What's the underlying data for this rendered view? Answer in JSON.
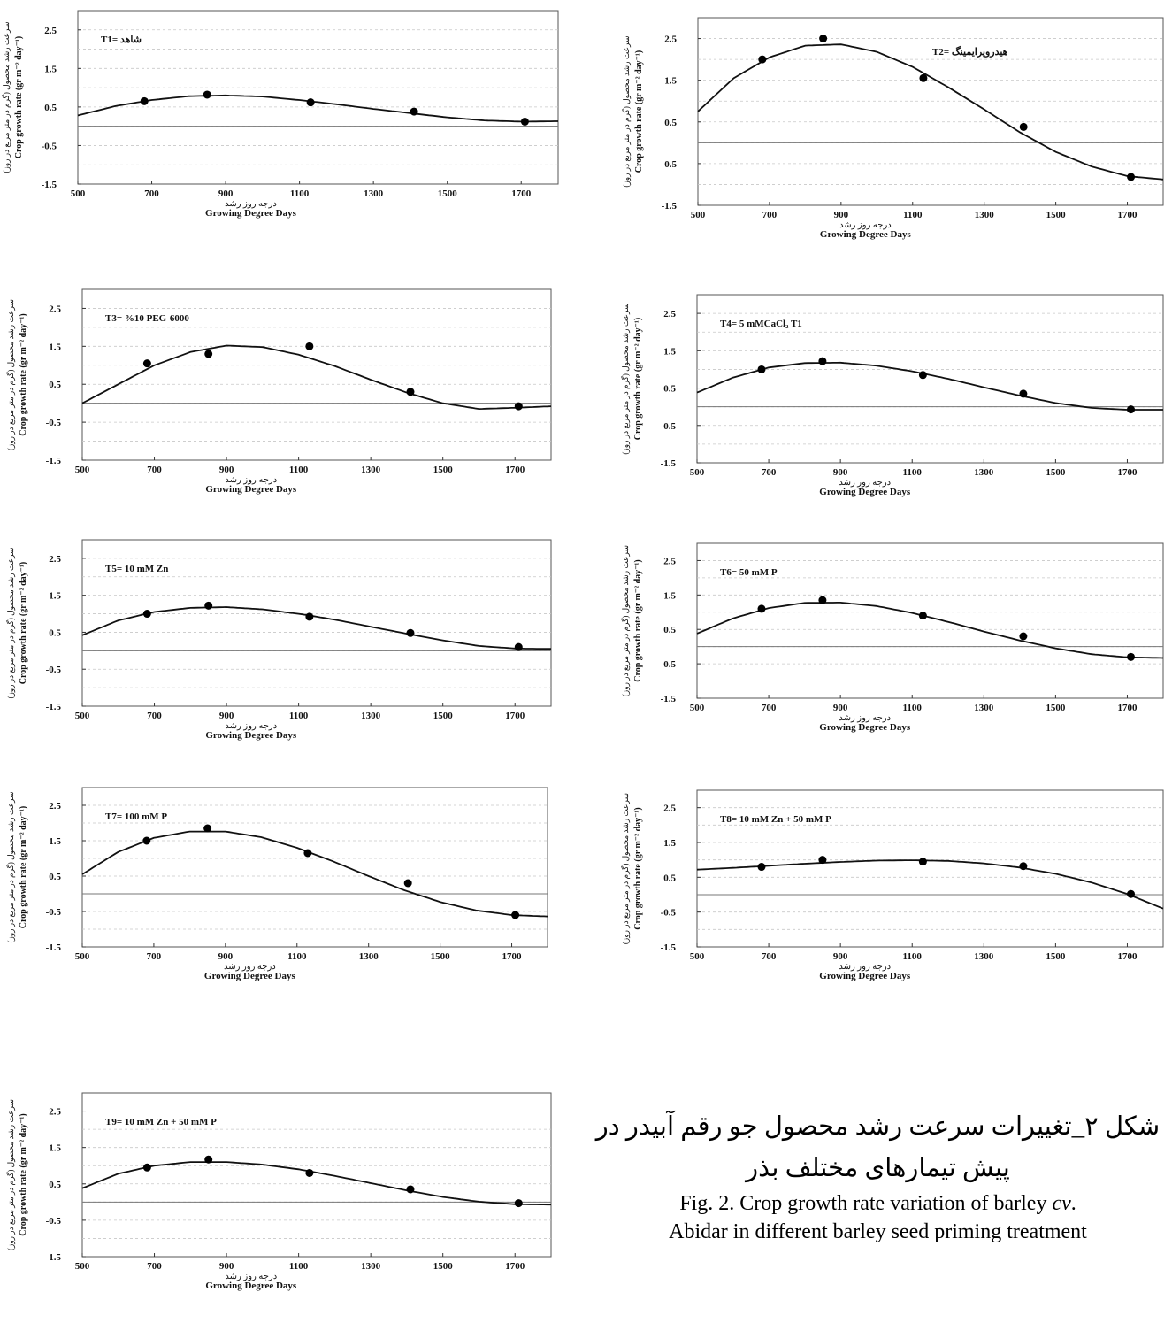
{
  "figure": {
    "caption_fa_line1": "شکل ۲_تغییرات سرعت رشد محصول جو رقم آبیدر در",
    "caption_fa_line2": "پیش تیمارهای مختلف بذر",
    "caption_en_prefix": "Fig. 2. Crop growth rate variation of barley ",
    "caption_en_cv": "cv",
    "caption_en_suffix": ".",
    "caption_en_line2": "Abidar in different barley seed priming treatment"
  },
  "chart_data": [
    {
      "type": "scatter",
      "title": "T1= شاهد",
      "xlabel_fa": "درجه روز رشد",
      "xlabel": "Growing Degree Days",
      "ylabel_fa": "سرعت رشد محصول (گرم در متر مربع در روز)",
      "ylabel": "Crop growth rate (gr m⁻² day⁻¹)",
      "xlim": [
        500,
        1800
      ],
      "ylim": [
        -1.5,
        3.0
      ],
      "xticks": [
        500,
        700,
        900,
        1100,
        1300,
        1500,
        1700
      ],
      "xtick_labels": [
        "500",
        "700",
        "900",
        "1100",
        "1300",
        "1500",
        "1700"
      ],
      "yticks": [
        -1.5,
        -0.5,
        0.5,
        1.5,
        2.5
      ],
      "ytick_labels": [
        "-1.5",
        "-0.5",
        "0.5",
        "1.5",
        "2.5"
      ],
      "grid": "dashed-horizontal",
      "points": {
        "x": [
          680,
          850,
          1130,
          1410,
          1710
        ],
        "y": [
          0.65,
          0.82,
          0.62,
          0.38,
          0.12
        ]
      },
      "fitted_curve": {
        "x": [
          500,
          600,
          700,
          800,
          900,
          1000,
          1100,
          1200,
          1300,
          1400,
          1500,
          1600,
          1700,
          1800
        ],
        "y": [
          0.28,
          0.52,
          0.68,
          0.78,
          0.8,
          0.77,
          0.68,
          0.57,
          0.45,
          0.34,
          0.23,
          0.15,
          0.12,
          0.13
        ]
      }
    },
    {
      "type": "scatter",
      "title": "T2= هیدروپرایمینگ",
      "xlabel_fa": "درجه روز رشد",
      "xlabel": "Growing Degree Days",
      "ylabel_fa": "سرعت رشد محصول (گرم در متر مربع در روز)",
      "ylabel": "Crop growth rate (gr m⁻² day⁻¹)",
      "xlim": [
        500,
        1800
      ],
      "ylim": [
        -1.5,
        3.0
      ],
      "xticks": [
        500,
        700,
        900,
        1100,
        1300,
        1500,
        1700
      ],
      "xtick_labels": [
        "500",
        "700",
        "900",
        "1100",
        "1300",
        "1500",
        "1700"
      ],
      "yticks": [
        -1.5,
        -0.5,
        0.5,
        1.5,
        2.5
      ],
      "ytick_labels": [
        "-1.5",
        "-0.5",
        "0.5",
        "1.5",
        "2.5"
      ],
      "grid": "dashed-horizontal",
      "points": {
        "x": [
          680,
          850,
          1130,
          1410,
          1710
        ],
        "y": [
          2.0,
          2.5,
          1.55,
          0.38,
          -0.82
        ]
      },
      "fitted_curve": {
        "x": [
          500,
          600,
          700,
          800,
          900,
          1000,
          1100,
          1200,
          1300,
          1400,
          1500,
          1600,
          1700,
          1800
        ],
        "y": [
          0.75,
          1.55,
          2.05,
          2.33,
          2.36,
          2.18,
          1.82,
          1.33,
          0.8,
          0.25,
          -0.22,
          -0.57,
          -0.8,
          -0.88
        ]
      }
    },
    {
      "type": "scatter",
      "title": "T3= %10 PEG-6000",
      "xlabel_fa": "درجه روز رشد",
      "xlabel": "Growing Degree Days",
      "ylabel_fa": "سرعت رشد محصول (گرم در متر مربع در روز)",
      "ylabel": "Crop growth rate (gr m⁻² day⁻¹)",
      "xlim": [
        500,
        1800
      ],
      "ylim": [
        -1.5,
        3.0
      ],
      "xticks": [
        500,
        700,
        900,
        1100,
        1300,
        1500,
        1700
      ],
      "xtick_labels": [
        "500",
        "700",
        "900",
        "1100",
        "1300",
        "1500",
        "1700"
      ],
      "yticks": [
        -1.5,
        -0.5,
        0.5,
        1.5,
        2.5
      ],
      "ytick_labels": [
        "-1.5",
        "-0.5",
        "0.5",
        "1.5",
        "2.5"
      ],
      "grid": "dashed-horizontal",
      "points": {
        "x": [
          680,
          850,
          1130,
          1410,
          1710
        ],
        "y": [
          1.05,
          1.3,
          1.5,
          0.3,
          -0.08
        ]
      },
      "fitted_curve": {
        "x": [
          500,
          600,
          700,
          800,
          900,
          1000,
          1100,
          1200,
          1300,
          1400,
          1500,
          1600,
          1700,
          1800
        ],
        "y": [
          0.0,
          0.5,
          1.0,
          1.35,
          1.52,
          1.48,
          1.28,
          0.98,
          0.62,
          0.28,
          -0.0,
          -0.15,
          -0.12,
          -0.08
        ]
      }
    },
    {
      "type": "scatter",
      "title": "T4= 5 mMCaCl₂ T1",
      "xlabel_fa": "درجه روز رشد",
      "xlabel": "Growing Degree Days",
      "ylabel_fa": "سرعت رشد محصول (گرم در متر مربع در روز)",
      "ylabel": "Crop growth rate (gr m⁻² day⁻¹)",
      "xlim": [
        500,
        1800
      ],
      "ylim": [
        -1.5,
        3.0
      ],
      "xticks": [
        500,
        700,
        900,
        1100,
        1300,
        1500,
        1700
      ],
      "xtick_labels": [
        "500",
        "700",
        "900",
        "1100",
        "1300",
        "1500",
        "1700"
      ],
      "yticks": [
        -1.5,
        -0.5,
        0.5,
        1.5,
        2.5
      ],
      "ytick_labels": [
        "-1.5",
        "-0.5",
        "0.5",
        "1.5",
        "2.5"
      ],
      "grid": "dashed-horizontal",
      "points": {
        "x": [
          680,
          850,
          1130,
          1410,
          1710
        ],
        "y": [
          1.0,
          1.22,
          0.85,
          0.35,
          -0.07
        ]
      },
      "fitted_curve": {
        "x": [
          500,
          600,
          700,
          800,
          900,
          1000,
          1100,
          1200,
          1300,
          1400,
          1500,
          1600,
          1700,
          1800
        ],
        "y": [
          0.38,
          0.78,
          1.05,
          1.17,
          1.18,
          1.1,
          0.95,
          0.75,
          0.52,
          0.3,
          0.1,
          -0.03,
          -0.08,
          -0.08
        ]
      }
    },
    {
      "type": "scatter",
      "title": "T5= 10 mM Zn",
      "xlabel_fa": "درجه روز رشد",
      "xlabel": "Growing Degree Days",
      "ylabel_fa": "سرعت رشد محصول (گرم در متر مربع در روز)",
      "ylabel": "Crop growth rate (gr m⁻² day⁻¹)",
      "xlim": [
        500,
        1800
      ],
      "ylim": [
        -1.5,
        3.0
      ],
      "xticks": [
        500,
        700,
        900,
        1100,
        1300,
        1500,
        1700
      ],
      "xtick_labels": [
        "500",
        "700",
        "900",
        "1100",
        "1300",
        "1500",
        "1700"
      ],
      "yticks": [
        -1.5,
        -0.5,
        0.5,
        1.5,
        2.5
      ],
      "ytick_labels": [
        "-1.5",
        "-0.5",
        "0.5",
        "1.5",
        "2.5"
      ],
      "grid": "dashed-horizontal",
      "points": {
        "x": [
          680,
          850,
          1130,
          1410,
          1710
        ],
        "y": [
          1.0,
          1.22,
          0.92,
          0.48,
          0.1
        ]
      },
      "fitted_curve": {
        "x": [
          500,
          600,
          700,
          800,
          900,
          1000,
          1100,
          1200,
          1300,
          1400,
          1500,
          1600,
          1700,
          1800
        ],
        "y": [
          0.42,
          0.82,
          1.05,
          1.16,
          1.18,
          1.12,
          1.0,
          0.84,
          0.65,
          0.46,
          0.28,
          0.13,
          0.06,
          0.05
        ]
      }
    },
    {
      "type": "scatter",
      "title": "T6= 50 mM P",
      "xlabel_fa": "درجه روز رشد",
      "xlabel": "Growing Degree Days",
      "ylabel_fa": "سرعت رشد محصول (گرم در متر مربع در روز)",
      "ylabel": "Crop growth rate (gr m⁻² day⁻¹)",
      "xlim": [
        500,
        1800
      ],
      "ylim": [
        -1.5,
        3.0
      ],
      "xticks": [
        500,
        700,
        900,
        1100,
        1300,
        1500,
        1700
      ],
      "xtick_labels": [
        "500",
        "700",
        "900",
        "1100",
        "1300",
        "1500",
        "1700"
      ],
      "yticks": [
        -1.5,
        -0.5,
        0.5,
        1.5,
        2.5
      ],
      "ytick_labels": [
        "-1.5",
        "-0.5",
        "0.5",
        "1.5",
        "2.5"
      ],
      "grid": "dashed-horizontal",
      "points": {
        "x": [
          680,
          850,
          1130,
          1410,
          1710
        ],
        "y": [
          1.1,
          1.35,
          0.9,
          0.3,
          -0.3
        ]
      },
      "fitted_curve": {
        "x": [
          500,
          600,
          700,
          800,
          900,
          1000,
          1100,
          1200,
          1300,
          1400,
          1500,
          1600,
          1700,
          1800
        ],
        "y": [
          0.38,
          0.82,
          1.12,
          1.27,
          1.28,
          1.18,
          0.98,
          0.72,
          0.44,
          0.18,
          -0.05,
          -0.22,
          -0.31,
          -0.33
        ]
      }
    },
    {
      "type": "scatter",
      "title": "T7= 100 mM P",
      "xlabel_fa": "درجه روز رشد",
      "xlabel": "Growing Degree Days",
      "ylabel_fa": "سرعت رشد محصول (گرم در متر مربع در روز)",
      "ylabel": "Crop growth rate (gr m⁻² day⁻¹)",
      "xlim": [
        500,
        1800
      ],
      "ylim": [
        -1.5,
        3.0
      ],
      "xticks": [
        500,
        700,
        900,
        1100,
        1300,
        1500,
        1700
      ],
      "xtick_labels": [
        "500",
        "700",
        "900",
        "1100",
        "1300",
        "1500",
        "1700"
      ],
      "yticks": [
        -1.5,
        -0.5,
        0.5,
        1.5,
        2.5
      ],
      "ytick_labels": [
        "-1.5",
        "-0.5",
        "0.5",
        "1.5",
        "2.5"
      ],
      "grid": "dashed-horizontal",
      "points": {
        "x": [
          680,
          850,
          1130,
          1410,
          1710
        ],
        "y": [
          1.5,
          1.85,
          1.15,
          0.3,
          -0.6
        ]
      },
      "fitted_curve": {
        "x": [
          500,
          600,
          700,
          800,
          900,
          1000,
          1100,
          1200,
          1300,
          1400,
          1500,
          1600,
          1700,
          1800
        ],
        "y": [
          0.55,
          1.18,
          1.58,
          1.76,
          1.76,
          1.6,
          1.3,
          0.92,
          0.5,
          0.1,
          -0.23,
          -0.47,
          -0.6,
          -0.64
        ]
      }
    },
    {
      "type": "scatter",
      "title": "T8= 10 mM Zn + 50 mM P",
      "xlabel_fa": "درجه روز رشد",
      "xlabel": "Growing Degree Days",
      "ylabel_fa": "سرعت رشد محصول (گرم در متر مربع در روز)",
      "ylabel": "Crop growth rate (gr m⁻² day⁻¹)",
      "xlim": [
        500,
        1800
      ],
      "ylim": [
        -1.5,
        3.0
      ],
      "xticks": [
        500,
        700,
        900,
        1100,
        1300,
        1500,
        1700
      ],
      "xtick_labels": [
        "500",
        "700",
        "900",
        "1100",
        "1300",
        "1500",
        "1700"
      ],
      "yticks": [
        -1.5,
        -0.5,
        0.5,
        1.5,
        2.5
      ],
      "ytick_labels": [
        "-1.5",
        "-0.5",
        "0.5",
        "1.5",
        "2.5"
      ],
      "grid": "dashed-horizontal",
      "points": {
        "x": [
          680,
          850,
          1130,
          1410,
          1710
        ],
        "y": [
          0.8,
          1.0,
          0.95,
          0.82,
          0.02
        ]
      },
      "fitted_curve": {
        "x": [
          500,
          600,
          700,
          800,
          900,
          1000,
          1100,
          1200,
          1300,
          1400,
          1500,
          1600,
          1700,
          1800
        ],
        "y": [
          0.72,
          0.77,
          0.83,
          0.89,
          0.94,
          0.98,
          0.99,
          0.97,
          0.9,
          0.78,
          0.6,
          0.35,
          0.02,
          -0.4
        ]
      }
    },
    {
      "type": "scatter",
      "title": "T9= 10 mM Zn + 50 mM P",
      "xlabel_fa": "درجه روز رشد",
      "xlabel": "Growing Degree Days",
      "ylabel_fa": "سرعت رشد محصول (گرم در متر مربع در روز)",
      "ylabel": "Crop growth rate (gr m⁻² day⁻¹)",
      "xlim": [
        500,
        1800
      ],
      "ylim": [
        -1.5,
        3.0
      ],
      "xticks": [
        500,
        700,
        900,
        1100,
        1300,
        1500,
        1700
      ],
      "xtick_labels": [
        "500",
        "700",
        "900",
        "1100",
        "1300",
        "1500",
        "1700"
      ],
      "yticks": [
        -1.5,
        -0.5,
        0.5,
        1.5,
        2.5
      ],
      "ytick_labels": [
        "-1.5",
        "-0.5",
        "0.5",
        "1.5",
        "2.5"
      ],
      "grid": "dashed-horizontal",
      "points": {
        "x": [
          680,
          850,
          1130,
          1410,
          1710
        ],
        "y": [
          0.95,
          1.17,
          0.8,
          0.35,
          -0.03
        ]
      },
      "fitted_curve": {
        "x": [
          500,
          600,
          700,
          800,
          900,
          1000,
          1100,
          1200,
          1300,
          1400,
          1500,
          1600,
          1700,
          1800
        ],
        "y": [
          0.38,
          0.78,
          1.0,
          1.1,
          1.1,
          1.03,
          0.9,
          0.72,
          0.52,
          0.32,
          0.14,
          0.01,
          -0.06,
          -0.07
        ]
      }
    }
  ]
}
